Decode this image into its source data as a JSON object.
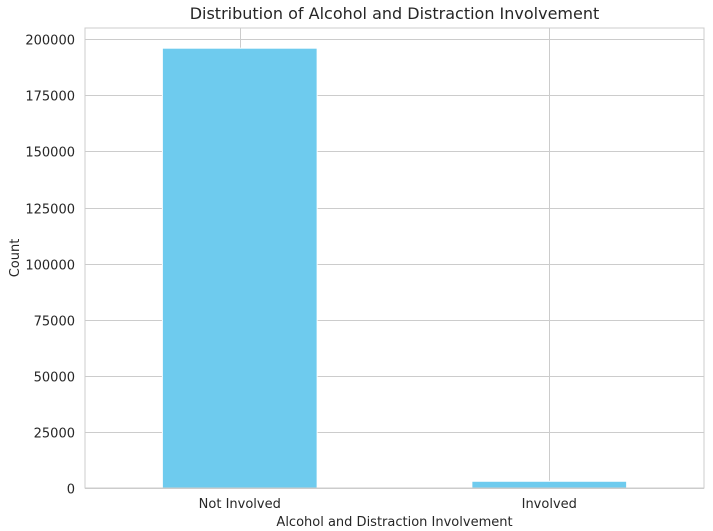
{
  "chart_data": {
    "type": "bar",
    "title": "Distribution of Alcohol and Distraction Involvement",
    "xlabel": "Alcohol and Distraction Involvement",
    "ylabel": "Count",
    "categories": [
      "Not Involved",
      "Involved"
    ],
    "values": [
      196000,
      3000
    ],
    "ylim": [
      0,
      205000
    ],
    "yticks": [
      0,
      25000,
      50000,
      75000,
      100000,
      125000,
      150000,
      175000,
      200000
    ],
    "ytick_labels": [
      "0",
      "25000",
      "50000",
      "75000",
      "100000",
      "125000",
      "150000",
      "175000",
      "200000"
    ],
    "bar_color": "#6ecbee",
    "grid": true,
    "legend": "none"
  }
}
